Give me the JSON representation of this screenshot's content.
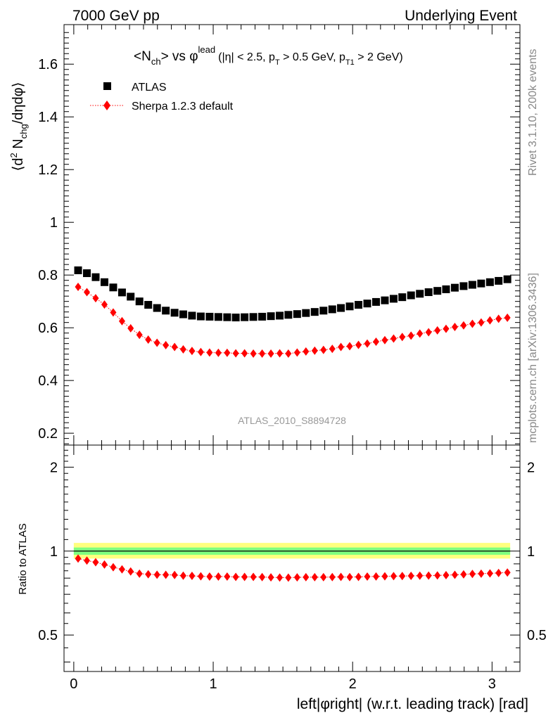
{
  "header": {
    "left_label": "7000 GeV pp",
    "right_label": "Underlying Event"
  },
  "side_labels": {
    "rivet": "Rivet 3.1.10,  200k events",
    "mcplots": "mcplots.cern.ch [arXiv:1306.3436]"
  },
  "chart_data": {
    "type": "scatter",
    "title_parts": {
      "a": "<N",
      "a_sub": "ch",
      "b": "> vs ",
      "phi": "φ",
      "lead_sup": "lead",
      "cuts_1": "(|η| < 2.5, p",
      "cuts_1_sub": "T",
      "cuts_2": " > 0.5 GeV, p",
      "cuts_2_sub": "T1",
      "cuts_3": " > 2 GeV)"
    },
    "ylabel_parts": {
      "open": "⟨d",
      "sup2": "2",
      "n": " N",
      "sub": "chg",
      "rest": "/dηdφ⟩"
    },
    "xlabel": "left|φright| (w.r.t. leading track) [rad]",
    "ratio_ylabel": "Ratio to ATLAS",
    "analysis_label": "ATLAS_2010_S8894728",
    "xlim": [
      -0.07,
      3.2
    ],
    "ylim": [
      0.155,
      1.75
    ],
    "ratio_ylim": [
      0.37,
      2.4
    ],
    "ratio_log": true,
    "x_ticks": [
      "0",
      "1",
      "2",
      "3"
    ],
    "y_ticks": [
      "0.2",
      "0.4",
      "0.6",
      "0.8",
      "1",
      "1.2",
      "1.4",
      "1.6"
    ],
    "ratio_ticks": [
      "0.5",
      "1",
      "2"
    ],
    "legend_position": "top-left",
    "band_colors": {
      "inner": "#7fff7f",
      "outer": "#ffff7f"
    },
    "ratio_band": {
      "inner": [
        0.97,
        1.03
      ],
      "outer": [
        0.94,
        1.07
      ]
    },
    "series": [
      {
        "name": "ATLAS",
        "color": "#000000",
        "marker": "square",
        "x": [
          0.031,
          0.094,
          0.157,
          0.22,
          0.283,
          0.346,
          0.408,
          0.471,
          0.534,
          0.597,
          0.66,
          0.723,
          0.785,
          0.848,
          0.911,
          0.974,
          1.037,
          1.1,
          1.162,
          1.225,
          1.288,
          1.351,
          1.414,
          1.477,
          1.539,
          1.602,
          1.665,
          1.728,
          1.791,
          1.854,
          1.916,
          1.979,
          2.042,
          2.105,
          2.168,
          2.231,
          2.294,
          2.356,
          2.419,
          2.482,
          2.545,
          2.608,
          2.67,
          2.733,
          2.796,
          2.859,
          2.922,
          2.985,
          3.047,
          3.11
        ],
        "y": [
          0.818,
          0.807,
          0.792,
          0.773,
          0.753,
          0.734,
          0.718,
          0.7,
          0.687,
          0.675,
          0.665,
          0.657,
          0.651,
          0.646,
          0.643,
          0.642,
          0.641,
          0.64,
          0.639,
          0.64,
          0.641,
          0.642,
          0.644,
          0.646,
          0.649,
          0.652,
          0.656,
          0.66,
          0.665,
          0.67,
          0.675,
          0.681,
          0.687,
          0.692,
          0.698,
          0.704,
          0.71,
          0.716,
          0.723,
          0.729,
          0.735,
          0.74,
          0.746,
          0.752,
          0.758,
          0.763,
          0.768,
          0.773,
          0.778,
          0.784
        ]
      },
      {
        "name": "Sherpa 1.2.3 default",
        "color": "#ff0000",
        "marker": "diamond",
        "x": [
          0.031,
          0.094,
          0.157,
          0.22,
          0.283,
          0.346,
          0.408,
          0.471,
          0.534,
          0.597,
          0.66,
          0.723,
          0.785,
          0.848,
          0.911,
          0.974,
          1.037,
          1.1,
          1.162,
          1.225,
          1.288,
          1.351,
          1.414,
          1.477,
          1.539,
          1.602,
          1.665,
          1.728,
          1.791,
          1.854,
          1.916,
          1.979,
          2.042,
          2.105,
          2.168,
          2.231,
          2.294,
          2.356,
          2.419,
          2.482,
          2.545,
          2.608,
          2.67,
          2.733,
          2.796,
          2.859,
          2.922,
          2.985,
          3.047,
          3.11
        ],
        "y": [
          0.755,
          0.735,
          0.712,
          0.688,
          0.658,
          0.625,
          0.598,
          0.573,
          0.555,
          0.543,
          0.534,
          0.527,
          0.518,
          0.512,
          0.508,
          0.506,
          0.505,
          0.505,
          0.503,
          0.503,
          0.502,
          0.502,
          0.502,
          0.503,
          0.502,
          0.506,
          0.51,
          0.513,
          0.516,
          0.52,
          0.527,
          0.53,
          0.535,
          0.54,
          0.547,
          0.553,
          0.559,
          0.565,
          0.57,
          0.578,
          0.583,
          0.59,
          0.596,
          0.603,
          0.609,
          0.615,
          0.62,
          0.628,
          0.634,
          0.638
        ]
      }
    ],
    "ratio": {
      "x": [
        0.031,
        0.094,
        0.157,
        0.22,
        0.283,
        0.346,
        0.408,
        0.471,
        0.534,
        0.597,
        0.66,
        0.723,
        0.785,
        0.848,
        0.911,
        0.974,
        1.037,
        1.1,
        1.162,
        1.225,
        1.288,
        1.351,
        1.414,
        1.477,
        1.539,
        1.602,
        1.665,
        1.728,
        1.791,
        1.854,
        1.916,
        1.979,
        2.042,
        2.105,
        2.168,
        2.231,
        2.294,
        2.356,
        2.419,
        2.482,
        2.545,
        2.608,
        2.67,
        2.733,
        2.796,
        2.859,
        2.922,
        2.985,
        3.047,
        3.11
      ],
      "y": [
        0.94,
        0.925,
        0.912,
        0.895,
        0.875,
        0.86,
        0.845,
        0.83,
        0.826,
        0.823,
        0.822,
        0.821,
        0.816,
        0.815,
        0.812,
        0.81,
        0.81,
        0.81,
        0.808,
        0.808,
        0.808,
        0.807,
        0.805,
        0.804,
        0.803,
        0.805,
        0.806,
        0.806,
        0.806,
        0.807,
        0.808,
        0.807,
        0.808,
        0.81,
        0.811,
        0.812,
        0.813,
        0.814,
        0.815,
        0.816,
        0.817,
        0.818,
        0.82,
        0.822,
        0.825,
        0.828,
        0.83,
        0.832,
        0.835,
        0.838
      ]
    }
  }
}
